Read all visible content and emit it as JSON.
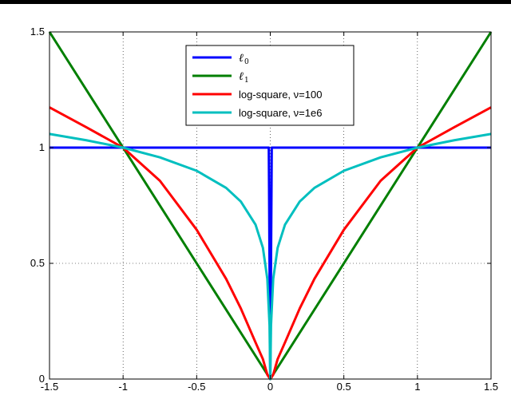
{
  "chart_data": {
    "type": "line",
    "title": "",
    "xlabel": "",
    "ylabel": "",
    "xlim": [
      -1.5,
      1.5
    ],
    "ylim": [
      0,
      1.5
    ],
    "xticks": [
      -1.5,
      -1,
      -0.5,
      0,
      0.5,
      1,
      1.5
    ],
    "xtick_labels": [
      "-1.5",
      "-1",
      "-0.5",
      "0",
      "0.5",
      "1",
      "1.5"
    ],
    "yticks": [
      0,
      0.5,
      1,
      1.5
    ],
    "ytick_labels": [
      "0",
      "0.5",
      "1",
      "1.5"
    ],
    "grid": true,
    "legend_position": "top-center",
    "series": [
      {
        "name": "ℓ0",
        "symbol": "ℓ",
        "subscript": "0",
        "color": "#0000ff",
        "x": [
          -1.5,
          -0.01,
          -0.01,
          0,
          0.01,
          0.01,
          1.5
        ],
        "y": [
          1,
          1,
          1,
          0,
          1,
          1,
          1
        ]
      },
      {
        "name": "ℓ1",
        "symbol": "ℓ",
        "subscript": "1",
        "color": "#007f00",
        "x": [
          -1.5,
          0,
          1.5
        ],
        "y": [
          1.5,
          0,
          1.5
        ]
      },
      {
        "name": "log-square, ν=100",
        "color": "#ff0000",
        "x": [
          -1.5,
          -1.25,
          -1,
          -0.75,
          -0.5,
          -0.3,
          -0.2,
          -0.1,
          -0.05,
          -0.02,
          0,
          0.02,
          0.05,
          0.1,
          0.2,
          0.3,
          0.5,
          0.75,
          1,
          1.25,
          1.5
        ],
        "y": [
          1.174,
          1.088,
          1.0,
          0.857,
          0.645,
          0.433,
          0.305,
          0.158,
          0.086,
          0.019,
          0,
          0.019,
          0.086,
          0.158,
          0.305,
          0.433,
          0.645,
          0.857,
          1.0,
          1.088,
          1.174
        ]
      },
      {
        "name": "log-square, ν=1e6",
        "color": "#00bfbf",
        "x": [
          -1.5,
          -1.25,
          -1,
          -0.75,
          -0.5,
          -0.3,
          -0.2,
          -0.1,
          -0.05,
          -0.02,
          -0.005,
          0,
          0.005,
          0.02,
          0.05,
          0.1,
          0.2,
          0.3,
          0.5,
          0.75,
          1,
          1.25,
          1.5
        ],
        "y": [
          1.059,
          1.032,
          1.0,
          0.958,
          0.9,
          0.826,
          0.767,
          0.667,
          0.567,
          0.433,
          0.233,
          0,
          0.233,
          0.433,
          0.567,
          0.667,
          0.767,
          0.826,
          0.9,
          0.958,
          1.0,
          1.032,
          1.059
        ]
      }
    ]
  }
}
